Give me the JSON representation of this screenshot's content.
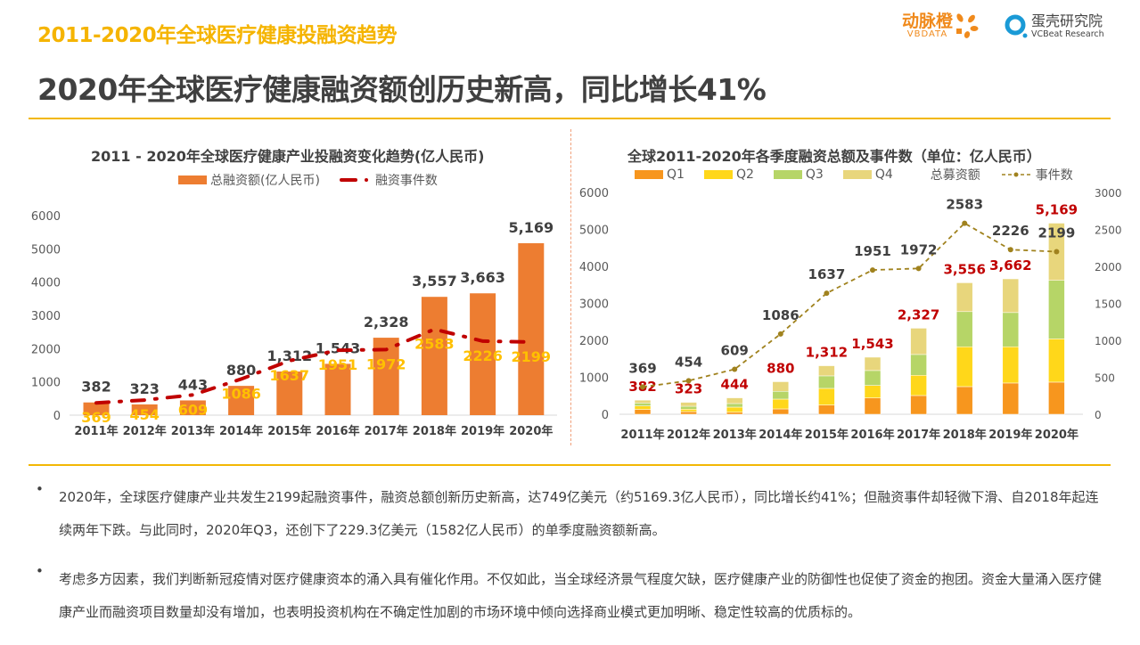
{
  "header": {
    "top_title": "2011-2020年全球医疗健康投融资趋势",
    "headline": "2020年全球医疗健康融资额创历史新高，同比增长41%",
    "logos": [
      {
        "name": "动脉橙",
        "sub": "VBDATA"
      },
      {
        "name": "蛋壳研究院",
        "sub": "VCBeat Research"
      }
    ]
  },
  "colors": {
    "accent_line": "#f2b705",
    "title_gold": "#f5b400",
    "bar_orange": "#ed7d31",
    "event_red": "#c00000",
    "event_label_yellow": "#ffc000",
    "q1": "#f7961e",
    "q2": "#ffd71a",
    "q3": "#b6d567",
    "q4": "#e8d67c",
    "event_olive": "#a0821e"
  },
  "chart_data": [
    {
      "type": "bar+line",
      "title": "2011 - 2020年全球医疗健康产业投融资变化趋势(亿人民币)",
      "categories": [
        "2011年",
        "2012年",
        "2013年",
        "2014年",
        "2015年",
        "2016年",
        "2017年",
        "2018年",
        "2019年",
        "2020年"
      ],
      "series": [
        {
          "name": "总融资额(亿人民币)",
          "type": "bar",
          "values": [
            382,
            323,
            443,
            880,
            1312,
            1543,
            2328,
            3557,
            3663,
            5169
          ]
        },
        {
          "name": "融资事件数",
          "type": "line",
          "values": [
            369,
            454,
            609,
            1086,
            1637,
            1951,
            1972,
            2583,
            2226,
            2199
          ]
        }
      ],
      "ylim": [
        0,
        6000
      ],
      "yticks": [
        0,
        1000,
        2000,
        3000,
        4000,
        5000,
        6000
      ],
      "legend": "top",
      "grid": false
    },
    {
      "type": "stacked-bar+line",
      "title": "全球2011-2020年各季度融资总额及事件数（单位：亿人民币）",
      "categories": [
        "2011年",
        "2012年",
        "2013年",
        "2014年",
        "2015年",
        "2016年",
        "2017年",
        "2018年",
        "2019年",
        "2020年"
      ],
      "series": [
        {
          "name": "Q1",
          "values": [
            130,
            72,
            56,
            145,
            250,
            442,
            507,
            748,
            845,
            869
          ]
        },
        {
          "name": "Q2",
          "values": [
            95,
            65,
            137,
            265,
            450,
            338,
            547,
            1078,
            981,
            1171
          ]
        },
        {
          "name": "Q3",
          "values": [
            80,
            80,
            97,
            210,
            338,
            403,
            563,
            950,
            925,
            1582
          ]
        },
        {
          "name": "Q4",
          "values": [
            77,
            106,
            154,
            260,
            274,
            360,
            710,
            780,
            911,
            1547
          ]
        }
      ],
      "totals": {
        "name": "总募资额",
        "values": [
          382,
          323,
          444,
          880,
          1312,
          1543,
          2327,
          3556,
          3662,
          5169
        ]
      },
      "events": {
        "name": "事件数",
        "axis": "right",
        "values": [
          369,
          454,
          609,
          1086,
          1637,
          1951,
          1972,
          2583,
          2226,
          2199
        ]
      },
      "ylim": [
        0,
        6000
      ],
      "yticks": [
        0,
        1000,
        2000,
        3000,
        4000,
        5000,
        6000
      ],
      "y2lim": [
        0,
        3000
      ],
      "y2ticks": [
        0,
        500,
        1000,
        1500,
        2000,
        2500,
        3000
      ],
      "legend": "top",
      "grid": false
    }
  ],
  "bullets": [
    "2020年，全球医疗健康产业共发生2199起融资事件，融资总额创新历史新高，达749亿美元（约5169.3亿人民币），同比增长约41%；但融资事件却轻微下滑、自2018年起连续两年下跌。与此同时，2020年Q3，还创下了229.3亿美元（1582亿人民币）的单季度融资额新高。",
    "考虑多方因素，我们判断新冠疫情对医疗健康资本的涌入具有催化作用。不仅如此，当全球经济景气程度欠缺，医疗健康产业的防御性也促使了资金的抱团。资金大量涌入医疗健康产业而融资项目数量却没有增加，也表明投资机构在不确定性加剧的市场环境中倾向选择商业模式更加明晰、稳定性较高的优质标的。"
  ]
}
